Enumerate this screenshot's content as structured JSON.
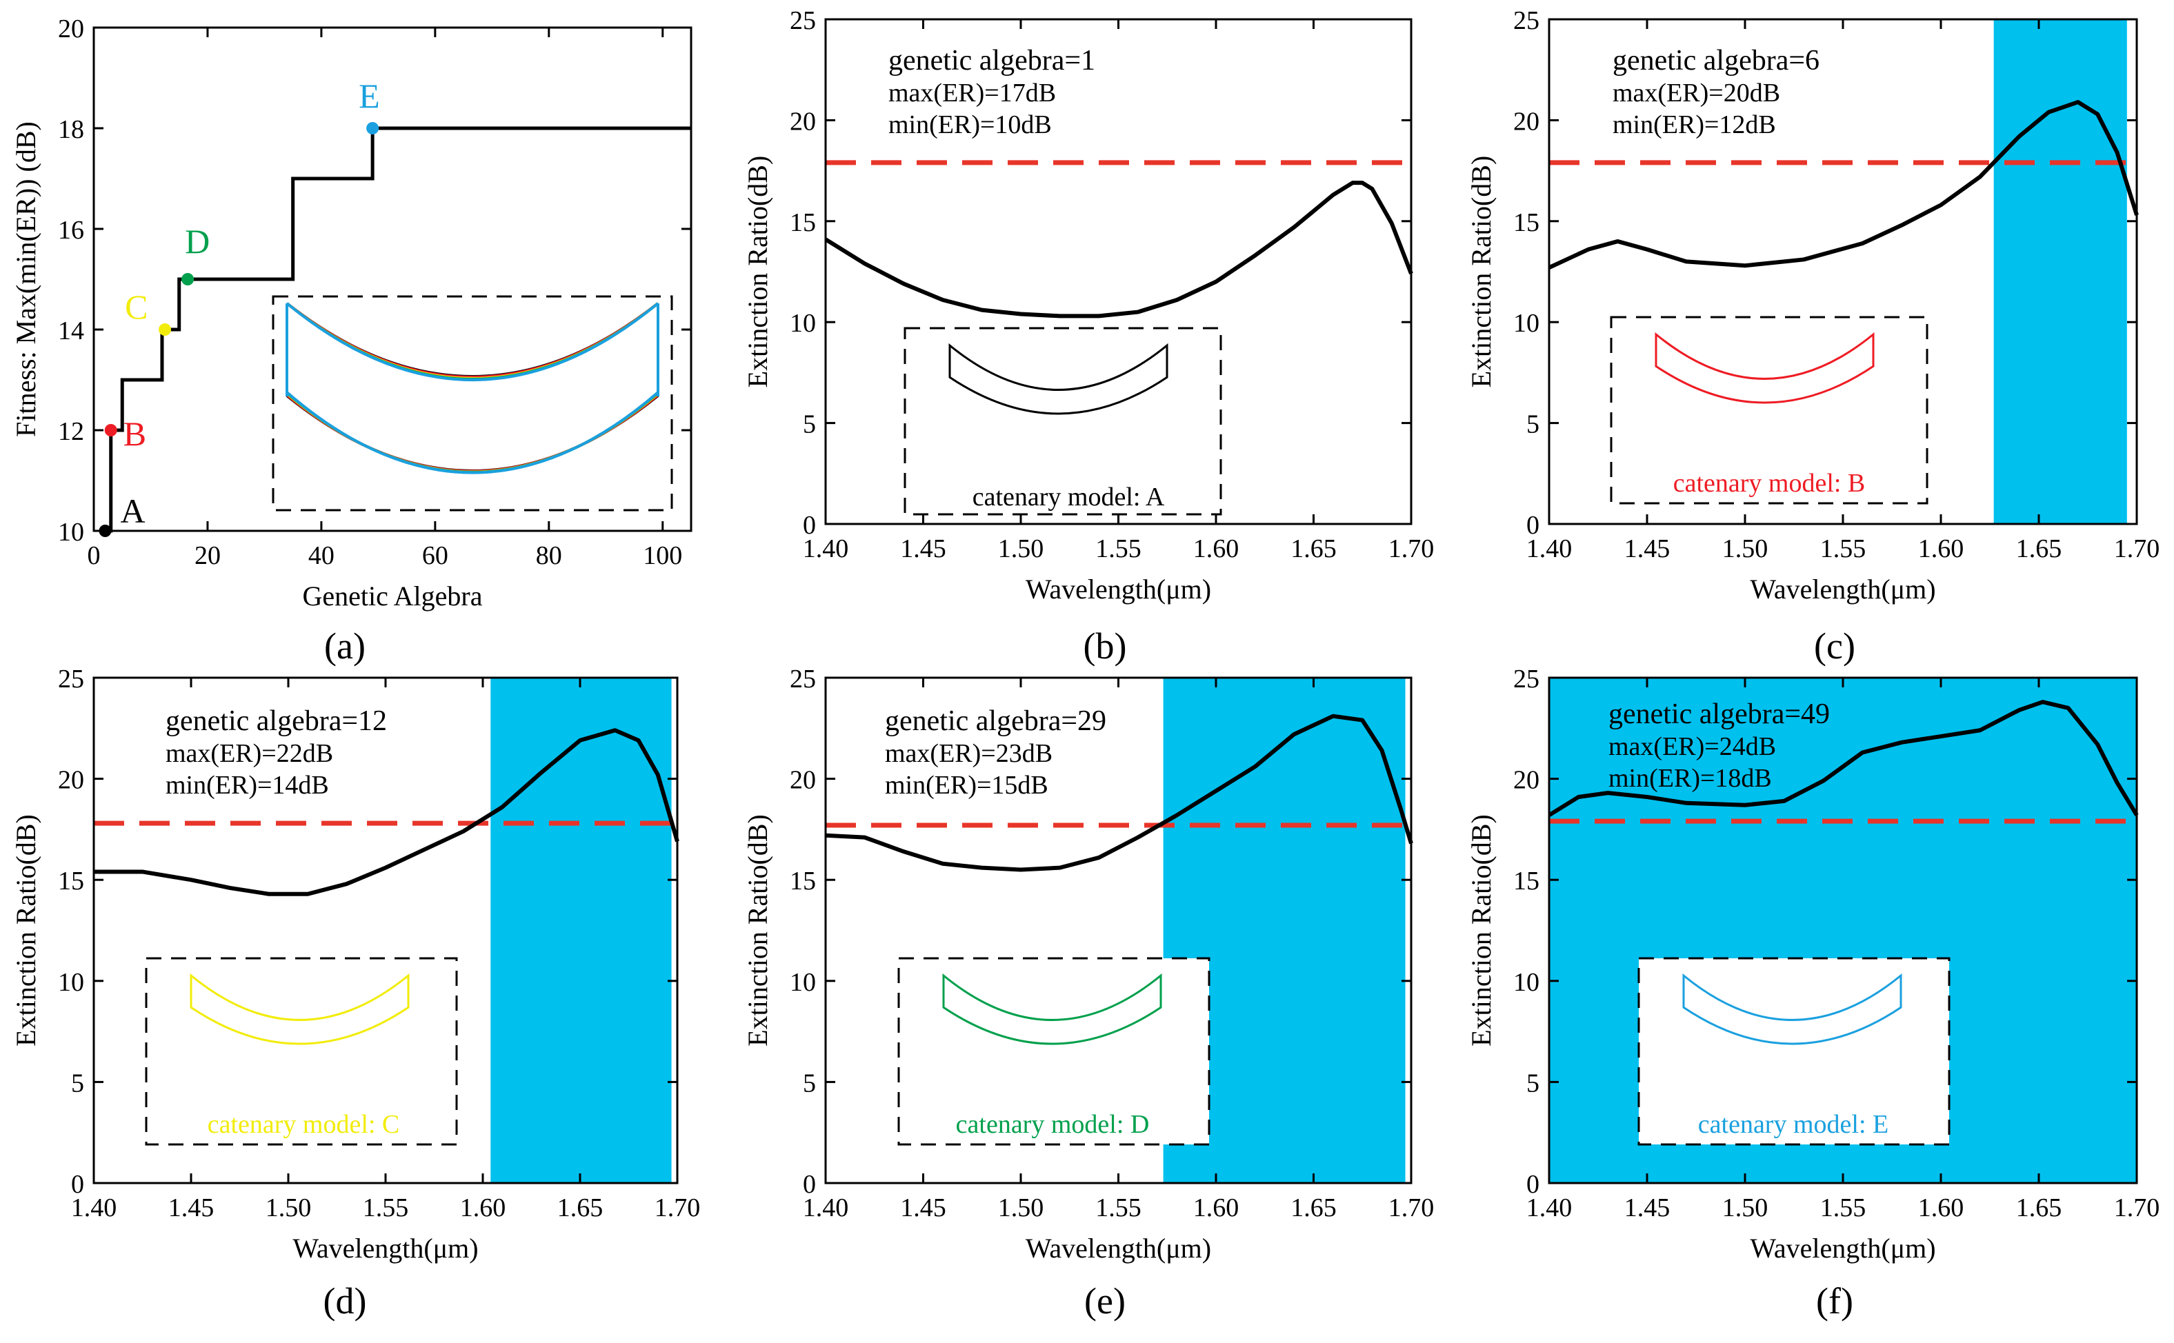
{
  "figure": {
    "panel_labels": [
      "(a)",
      "(b)",
      "(c)",
      "(d)",
      "(e)",
      "(f)"
    ]
  },
  "colors": {
    "curve": "#000000",
    "threshold": "#e8352a",
    "band": "#00c0ee",
    "A": "#000000",
    "B": "#ee1c24",
    "C": "#f2ec0a",
    "D": "#00a04c",
    "E": "#1aa0df",
    "inset_dark": "#6a2a62"
  },
  "chart_data": [
    {
      "id": "a",
      "type": "line",
      "panel_label": "(a)",
      "xlabel": "Genetic Algebra",
      "ylabel": "Fitness: Max(min(ER)) (dB)",
      "xlim": [
        0,
        105
      ],
      "ylim": [
        10,
        20
      ],
      "xticks": [
        0,
        20,
        40,
        60,
        80,
        100
      ],
      "yticks": [
        10,
        12,
        14,
        16,
        18,
        20
      ],
      "series": [
        {
          "name": "fitness",
          "x": [
            2,
            3,
            3,
            5,
            5,
            10,
            10,
            12,
            12,
            15,
            15,
            17,
            17,
            35,
            35,
            42,
            42,
            49,
            49,
            105
          ],
          "y": [
            10,
            10,
            12,
            12,
            13,
            13,
            13,
            13,
            14,
            14,
            15,
            15,
            15,
            15,
            17,
            17,
            17,
            17,
            18,
            18
          ]
        }
      ],
      "points": [
        {
          "label": "A",
          "x": 2,
          "y": 10,
          "color_key": "A"
        },
        {
          "label": "B",
          "x": 3,
          "y": 12,
          "color_key": "B"
        },
        {
          "label": "C",
          "x": 12.5,
          "y": 14,
          "color_key": "C"
        },
        {
          "label": "D",
          "x": 16.5,
          "y": 15,
          "color_key": "D"
        },
        {
          "label": "E",
          "x": 49,
          "y": 18,
          "color_key": "E"
        }
      ],
      "inset": {
        "type": "overlaid catenary models",
        "colors": [
          "A",
          "inset_dark",
          "B",
          "C",
          "D",
          "E"
        ]
      }
    },
    {
      "id": "b",
      "type": "line",
      "panel_label": "(b)",
      "xlabel": "Wavelength(μm)",
      "ylabel": "Extinction Ratio(dB)",
      "xlim": [
        1.4,
        1.7
      ],
      "ylim": [
        0,
        25
      ],
      "xticks": [
        1.4,
        1.45,
        1.5,
        1.55,
        1.6,
        1.65,
        1.7
      ],
      "yticks": [
        0,
        5,
        10,
        15,
        20,
        25
      ],
      "annotation": [
        "genetic algebra=1",
        "max(ER)=17dB",
        "min(ER)=10dB"
      ],
      "threshold_db": 17.9,
      "band": null,
      "curve": {
        "x": [
          1.4,
          1.42,
          1.44,
          1.46,
          1.48,
          1.5,
          1.52,
          1.54,
          1.56,
          1.58,
          1.6,
          1.62,
          1.64,
          1.66,
          1.67,
          1.675,
          1.68,
          1.69,
          1.7
        ],
        "y": [
          14.1,
          12.9,
          11.9,
          11.1,
          10.6,
          10.4,
          10.3,
          10.3,
          10.5,
          11.1,
          12.0,
          13.3,
          14.7,
          16.3,
          16.9,
          16.9,
          16.6,
          14.9,
          12.4
        ]
      },
      "inset": {
        "label": "catenary model: A",
        "color_key": "A",
        "white_bg": false
      }
    },
    {
      "id": "c",
      "type": "line",
      "panel_label": "(c)",
      "xlabel": "Wavelength(μm)",
      "ylabel": "Extinction Ratio(dB)",
      "xlim": [
        1.4,
        1.7
      ],
      "ylim": [
        0,
        25
      ],
      "xticks": [
        1.4,
        1.45,
        1.5,
        1.55,
        1.6,
        1.65,
        1.7
      ],
      "yticks": [
        0,
        5,
        10,
        15,
        20,
        25
      ],
      "annotation": [
        "genetic algebra=6",
        "max(ER)=20dB",
        "min(ER)=12dB"
      ],
      "threshold_db": 17.9,
      "band": [
        1.627,
        1.695
      ],
      "curve": {
        "x": [
          1.4,
          1.42,
          1.435,
          1.45,
          1.47,
          1.5,
          1.53,
          1.56,
          1.58,
          1.6,
          1.62,
          1.64,
          1.655,
          1.67,
          1.68,
          1.69,
          1.7
        ],
        "y": [
          12.7,
          13.6,
          14.0,
          13.6,
          13.0,
          12.8,
          13.1,
          13.9,
          14.8,
          15.8,
          17.2,
          19.2,
          20.4,
          20.9,
          20.3,
          18.4,
          15.3
        ]
      },
      "inset": {
        "label": "catenary model: B",
        "color_key": "B",
        "white_bg": false
      }
    },
    {
      "id": "d",
      "type": "line",
      "panel_label": "(d)",
      "xlabel": "Wavelength(μm)",
      "ylabel": "Extinction Ratio(dB)",
      "xlim": [
        1.4,
        1.7
      ],
      "ylim": [
        0,
        25
      ],
      "xticks": [
        1.4,
        1.45,
        1.5,
        1.55,
        1.6,
        1.65,
        1.7
      ],
      "yticks": [
        0,
        5,
        10,
        15,
        20,
        25
      ],
      "annotation": [
        "genetic algebra=12",
        "max(ER)=22dB",
        "min(ER)=14dB"
      ],
      "threshold_db": 17.8,
      "band": [
        1.604,
        1.697
      ],
      "curve": {
        "x": [
          1.4,
          1.425,
          1.45,
          1.47,
          1.49,
          1.51,
          1.53,
          1.55,
          1.57,
          1.59,
          1.61,
          1.63,
          1.65,
          1.668,
          1.68,
          1.69,
          1.7
        ],
        "y": [
          15.4,
          15.4,
          15.0,
          14.6,
          14.3,
          14.3,
          14.8,
          15.6,
          16.5,
          17.4,
          18.6,
          20.3,
          21.9,
          22.4,
          21.9,
          20.2,
          16.9
        ]
      },
      "inset": {
        "label": "catenary model: C",
        "color_key": "C",
        "white_bg": false
      }
    },
    {
      "id": "e",
      "type": "line",
      "panel_label": "(e)",
      "xlabel": "Wavelength(μm)",
      "ylabel": "Extinction Ratio(dB)",
      "xlim": [
        1.4,
        1.7
      ],
      "ylim": [
        0,
        25
      ],
      "xticks": [
        1.4,
        1.45,
        1.5,
        1.55,
        1.6,
        1.65,
        1.7
      ],
      "yticks": [
        0,
        5,
        10,
        15,
        20,
        25
      ],
      "annotation": [
        "genetic algebra=29",
        "max(ER)=23dB",
        "min(ER)=15dB"
      ],
      "threshold_db": 17.7,
      "band": [
        1.573,
        1.697
      ],
      "curve": {
        "x": [
          1.4,
          1.42,
          1.44,
          1.46,
          1.48,
          1.5,
          1.52,
          1.54,
          1.56,
          1.58,
          1.6,
          1.62,
          1.64,
          1.66,
          1.675,
          1.685,
          1.695,
          1.7
        ],
        "y": [
          17.2,
          17.1,
          16.4,
          15.8,
          15.6,
          15.5,
          15.6,
          16.1,
          17.1,
          18.2,
          19.4,
          20.6,
          22.2,
          23.1,
          22.9,
          21.4,
          18.4,
          16.8
        ]
      },
      "inset": {
        "label": "catenary model: D",
        "color_key": "D",
        "white_bg": true
      }
    },
    {
      "id": "f",
      "type": "line",
      "panel_label": "(f)",
      "xlabel": "Wavelength(μm)",
      "ylabel": "Extinction Ratio(dB)",
      "xlim": [
        1.4,
        1.7
      ],
      "ylim": [
        0,
        25
      ],
      "xticks": [
        1.4,
        1.45,
        1.5,
        1.55,
        1.6,
        1.65,
        1.7
      ],
      "yticks": [
        0,
        5,
        10,
        15,
        20,
        25
      ],
      "annotation": [
        "genetic algebra=49",
        "max(ER)=24dB",
        "min(ER)=18dB"
      ],
      "threshold_db": 17.9,
      "band": [
        1.4,
        1.7
      ],
      "curve": {
        "x": [
          1.4,
          1.415,
          1.43,
          1.45,
          1.47,
          1.5,
          1.52,
          1.54,
          1.56,
          1.58,
          1.6,
          1.62,
          1.64,
          1.652,
          1.665,
          1.68,
          1.69,
          1.7
        ],
        "y": [
          18.2,
          19.1,
          19.3,
          19.1,
          18.8,
          18.7,
          18.9,
          19.9,
          21.3,
          21.8,
          22.1,
          22.4,
          23.4,
          23.8,
          23.5,
          21.7,
          19.8,
          18.2
        ]
      },
      "inset": {
        "label": "catenary model: E",
        "color_key": "E",
        "white_bg": true
      }
    }
  ]
}
